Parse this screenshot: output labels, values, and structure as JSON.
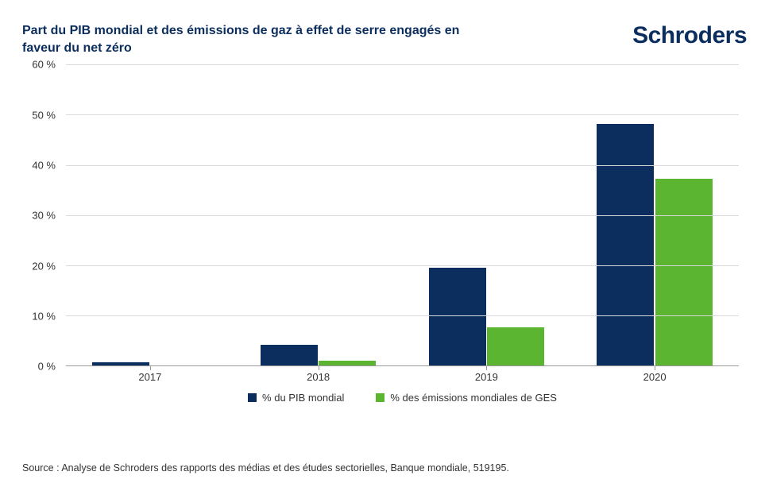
{
  "header": {
    "title": "Part du PIB mondial et des émissions de gaz à effet de serre engagés en faveur du net zéro",
    "logo": "Schroders"
  },
  "chart": {
    "type": "bar",
    "categories": [
      "2017",
      "2018",
      "2019",
      "2020"
    ],
    "series": [
      {
        "name": "% du PIB mondial",
        "color": "#0b2e5e",
        "values": [
          0.7,
          4.2,
          19.5,
          48.2
        ]
      },
      {
        "name": "% des émissions mondiales de GES",
        "color": "#5cb531",
        "values": [
          0.0,
          1.0,
          7.7,
          37.2
        ]
      }
    ],
    "ylim": [
      0,
      60
    ],
    "ytick_step": 10,
    "y_suffix": " %",
    "bar_width_pct": 8.5,
    "bar_gap_pct": 0.2,
    "group_width_pct": 25,
    "background_color": "#ffffff",
    "grid_color": "#d9d9d9",
    "axis_color": "#999999",
    "title_color": "#0b2e5e",
    "label_color": "#333333",
    "title_fontsize": 16,
    "label_fontsize": 13,
    "legend_fontsize": 13,
    "source_fontsize": 12.5
  },
  "source": "Source : Analyse de Schroders des rapports des médias et des études sectorielles, Banque mondiale, 519195."
}
